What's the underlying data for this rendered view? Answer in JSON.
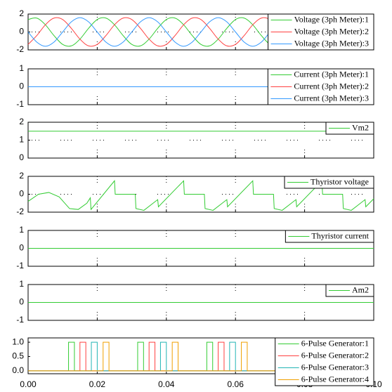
{
  "chart_data": [
    {
      "type": "line",
      "xlim": [
        0,
        0.1
      ],
      "xticks": [
        0,
        0.02,
        0.04,
        0.06,
        0.08,
        0.1
      ],
      "ylim": [
        -2,
        2
      ],
      "yticks": [
        -2,
        0,
        2
      ],
      "grid": true,
      "smooth": true,
      "x": [
        0,
        0.0025,
        0.005,
        0.0075,
        0.01,
        0.0125,
        0.015,
        0.0175,
        0.02,
        0.0225,
        0.025,
        0.0275,
        0.03,
        0.0325,
        0.035,
        0.0375,
        0.04,
        0.0425,
        0.045,
        0.0475,
        0.05,
        0.0525,
        0.055,
        0.0575,
        0.06,
        0.0625,
        0.065,
        0.0675,
        0.07,
        0.0725,
        0.075,
        0.0775,
        0.08,
        0.0825,
        0.085,
        0.0875,
        0.09,
        0.0925,
        0.095,
        0.0975,
        0.1
      ],
      "series": [
        {
          "name": "Voltage (3ph Meter):1",
          "color": "#33cc33",
          "values": [
            1.39,
            1.55,
            0.8,
            -0.41,
            -1.39,
            -1.55,
            -0.8,
            0.41,
            1.39,
            1.55,
            0.8,
            -0.41,
            -1.39,
            -1.55,
            -0.8,
            0.41,
            1.39,
            1.55,
            0.8,
            -0.41,
            -1.39,
            -1.55,
            -0.8,
            0.41,
            1.39,
            1.55,
            0.8,
            -0.41,
            -1.39,
            -1.55,
            -0.8,
            0.41,
            1.39,
            1.55,
            0.8,
            -0.41,
            -1.39,
            -1.55,
            -0.8,
            0.41,
            1.39
          ]
        },
        {
          "name": "Voltage (3ph Meter):2",
          "color": "#ff4040",
          "values": [
            -1.39,
            -0.41,
            0.8,
            1.55,
            1.39,
            0.41,
            -0.8,
            -1.55,
            -1.39,
            -0.41,
            0.8,
            1.55,
            1.39,
            0.41,
            -0.8,
            -1.55,
            -1.39,
            -0.41,
            0.8,
            1.55,
            1.39,
            0.41,
            -0.8,
            -1.55,
            -1.39,
            -0.41,
            0.8,
            1.55,
            1.39,
            0.41,
            -0.8,
            -1.55,
            -1.39,
            -0.41,
            0.8,
            1.55,
            1.39,
            0.41,
            -0.8,
            -1.55,
            -1.39
          ]
        },
        {
          "name": "Voltage (3ph Meter):3",
          "color": "#3399ff",
          "values": [
            0,
            -1.13,
            -1.6,
            -1.13,
            0,
            1.13,
            1.6,
            1.13,
            0,
            -1.13,
            -1.6,
            -1.13,
            0,
            1.13,
            1.6,
            1.13,
            0,
            -1.13,
            -1.6,
            -1.13,
            0,
            1.13,
            1.6,
            1.13,
            0,
            -1.13,
            -1.6,
            -1.13,
            0,
            1.13,
            1.6,
            1.13,
            0,
            -1.13,
            -1.6,
            -1.13,
            0,
            1.13,
            1.6,
            1.13,
            0
          ]
        }
      ]
    },
    {
      "type": "line",
      "xlim": [
        0,
        0.1
      ],
      "xticks": [
        0,
        0.02,
        0.04,
        0.06,
        0.08,
        0.1
      ],
      "ylim": [
        -1,
        1
      ],
      "yticks": [
        -1,
        0,
        1
      ],
      "grid": true,
      "x": [
        0,
        0.1
      ],
      "series": [
        {
          "name": "Current (3ph Meter):1",
          "color": "#33cc33",
          "values": [
            0,
            0
          ]
        },
        {
          "name": "Current (3ph Meter):2",
          "color": "#ff4040",
          "values": [
            0,
            0
          ]
        },
        {
          "name": "Current (3ph Meter):3",
          "color": "#3399ff",
          "values": [
            0,
            0
          ]
        }
      ]
    },
    {
      "type": "line",
      "xlim": [
        0,
        0.1
      ],
      "xticks": [
        0,
        0.02,
        0.04,
        0.06,
        0.08,
        0.1
      ],
      "ylim": [
        0,
        2
      ],
      "yticks": [
        0,
        1,
        2
      ],
      "grid": true,
      "x": [
        0,
        0.1
      ],
      "series": [
        {
          "name": "Vm2",
          "color": "#33cc33",
          "values": [
            1.5,
            1.5
          ]
        }
      ]
    },
    {
      "type": "line",
      "xlim": [
        0,
        0.1
      ],
      "xticks": [
        0,
        0.02,
        0.04,
        0.06,
        0.08,
        0.1
      ],
      "ylim": [
        -2,
        2
      ],
      "yticks": [
        -2,
        0,
        2
      ],
      "grid": true,
      "x": [
        0,
        0.003,
        0.006,
        0.009,
        0.012,
        0.0145,
        0.017,
        0.018,
        0.0182,
        0.025,
        0.0252,
        0.031,
        0.0312,
        0.0335,
        0.0375,
        0.0377,
        0.045,
        0.0452,
        0.051,
        0.0512,
        0.0535,
        0.0575,
        0.0577,
        0.065,
        0.0652,
        0.071,
        0.0712,
        0.0735,
        0.0775,
        0.0777,
        0.085,
        0.0852,
        0.091,
        0.0912,
        0.0935,
        0.0975,
        0.0977,
        0.1
      ],
      "series": [
        {
          "name": "Thyristor voltage",
          "color": "#33cc33",
          "values": [
            -0.8,
            0,
            0.2,
            -0.3,
            -1.6,
            -1.7,
            -1.0,
            -0.4,
            -1.7,
            1.5,
            0,
            0,
            -1.6,
            -1.8,
            -0.6,
            -1.4,
            1.5,
            0,
            0,
            -1.6,
            -1.8,
            -0.6,
            -1.4,
            1.5,
            0,
            0,
            -1.6,
            -1.8,
            -0.6,
            -1.4,
            1.5,
            0,
            0,
            -1.6,
            -1.8,
            -0.6,
            -1.4,
            -0.5
          ]
        }
      ]
    },
    {
      "type": "line",
      "xlim": [
        0,
        0.1
      ],
      "xticks": [
        0,
        0.02,
        0.04,
        0.06,
        0.08,
        0.1
      ],
      "ylim": [
        -1,
        1
      ],
      "yticks": [
        -1,
        0,
        1
      ],
      "grid": true,
      "x": [
        0,
        0.1
      ],
      "series": [
        {
          "name": "Thyristor current",
          "color": "#33cc33",
          "values": [
            0,
            0
          ]
        }
      ]
    },
    {
      "type": "line",
      "xlim": [
        0,
        0.1
      ],
      "xticks": [
        0,
        0.02,
        0.04,
        0.06,
        0.08,
        0.1
      ],
      "ylim": [
        -1,
        1
      ],
      "yticks": [
        -1,
        0,
        1
      ],
      "grid": true,
      "x": [
        0,
        0.1
      ],
      "series": [
        {
          "name": "Am2",
          "color": "#33cc33",
          "values": [
            0,
            0
          ]
        }
      ]
    },
    {
      "type": "line",
      "xlim": [
        0,
        0.1
      ],
      "xticks": [
        {
          "value": 0,
          "label": "0.00"
        },
        {
          "value": 0.02,
          "label": "0.02"
        },
        {
          "value": 0.04,
          "label": "0.04"
        },
        {
          "value": 0.06,
          "label": "0.06"
        },
        {
          "value": 0.08,
          "label": "0.08"
        },
        {
          "value": 0.1,
          "label": "0.10"
        }
      ],
      "ylim": [
        -0.1,
        1.15
      ],
      "yticks": [
        {
          "value": 0,
          "label": "0.0"
        },
        {
          "value": 0.5,
          "label": "0.5"
        },
        {
          "value": 1,
          "label": "1.0"
        }
      ],
      "grid": false,
      "series": [
        {
          "name": "6-Pulse Generator:1",
          "color": "#33cc33",
          "x": [
            0,
            0.0117,
            0.0117,
            0.0134,
            0.0134,
            0.0317,
            0.0317,
            0.0334,
            0.0334,
            0.0517,
            0.0517,
            0.0534,
            0.0534,
            0.0717,
            0.0717,
            0.0734,
            0.0734,
            0.0917,
            0.0917,
            0.0934,
            0.0934,
            0.1
          ],
          "values": [
            0,
            0,
            1,
            1,
            0,
            0,
            1,
            1,
            0,
            0,
            1,
            1,
            0,
            0,
            1,
            1,
            0,
            0,
            1,
            1,
            0,
            0
          ]
        },
        {
          "name": "6-Pulse Generator:2",
          "color": "#ff4040",
          "x": [
            0,
            0.015,
            0.015,
            0.0167,
            0.0167,
            0.035,
            0.035,
            0.0367,
            0.0367,
            0.055,
            0.055,
            0.0567,
            0.0567,
            0.075,
            0.075,
            0.0767,
            0.0767,
            0.095,
            0.095,
            0.0967,
            0.0967,
            0.1
          ],
          "values": [
            0,
            0,
            1,
            1,
            0,
            0,
            1,
            1,
            0,
            0,
            1,
            1,
            0,
            0,
            1,
            1,
            0,
            0,
            1,
            1,
            0,
            0
          ]
        },
        {
          "name": "6-Pulse Generator:3",
          "color": "#22b5b5",
          "x": [
            0,
            0.0183,
            0.0183,
            0.02,
            0.02,
            0.0383,
            0.0383,
            0.04,
            0.04,
            0.0583,
            0.0583,
            0.06,
            0.06,
            0.0783,
            0.0783,
            0.08,
            0.08,
            0.0983,
            0.0983,
            0.1
          ],
          "values": [
            0,
            0,
            1,
            1,
            0,
            0,
            1,
            1,
            0,
            0,
            1,
            1,
            0,
            0,
            1,
            1,
            0,
            0,
            1,
            1
          ]
        },
        {
          "name": "6-Pulse Generator:4",
          "color": "#f0a000",
          "x": [
            0,
            0.0217,
            0.0217,
            0.0234,
            0.0234,
            0.0417,
            0.0417,
            0.0434,
            0.0434,
            0.0617,
            0.0617,
            0.0634,
            0.0634,
            0.0817,
            0.0817,
            0.0834,
            0.0834,
            0.1
          ],
          "values": [
            0,
            0,
            1,
            1,
            0,
            0,
            1,
            1,
            0,
            0,
            1,
            1,
            0,
            0,
            1,
            1,
            0,
            0
          ]
        }
      ]
    }
  ]
}
